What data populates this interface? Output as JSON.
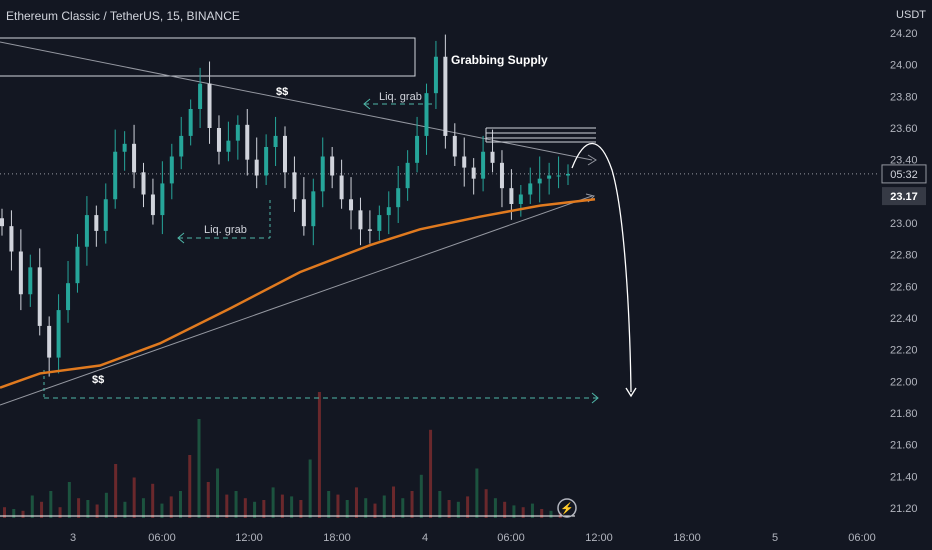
{
  "header": {
    "title": "Ethereum Classic / TetherUS, 15, BINANCE",
    "currency": "USDT"
  },
  "chart_data": {
    "type": "candlestick",
    "symbol": "ETCUSDT",
    "interval": "15",
    "exchange": "BINANCE",
    "y_ticks": [
      "24.20",
      "24.00",
      "23.80",
      "23.60",
      "23.40",
      "23.20",
      "23.00",
      "22.80",
      "22.60",
      "22.40",
      "22.20",
      "22.00",
      "21.80",
      "21.60",
      "21.40",
      "21.20"
    ],
    "x_ticks": [
      "3",
      "06:00",
      "12:00",
      "18:00",
      "4",
      "06:00",
      "12:00",
      "18:00",
      "5",
      "06:00"
    ],
    "ylim": [
      21.13,
      24.25
    ],
    "current_price": "23.17",
    "countdown": "05:32",
    "countdown_price": 23.31,
    "price_series": [
      22.98,
      22.82,
      22.55,
      22.72,
      22.35,
      22.15,
      22.45,
      22.62,
      22.85,
      23.05,
      22.95,
      23.15,
      23.45,
      23.5,
      23.32,
      23.18,
      23.05,
      23.25,
      23.42,
      23.55,
      23.72,
      23.88,
      23.6,
      23.45,
      23.52,
      23.62,
      23.4,
      23.3,
      23.48,
      23.55,
      23.32,
      23.15,
      22.98,
      23.2,
      23.42,
      23.3,
      23.15,
      23.08,
      22.96,
      22.95,
      23.05,
      23.1,
      23.22,
      23.38,
      23.55,
      23.82,
      24.05,
      23.55,
      23.42,
      23.35,
      23.28,
      23.45,
      23.38,
      23.22,
      23.12,
      23.18,
      23.25,
      23.28,
      23.3,
      23.3,
      23.31
    ],
    "ema_line": [
      [
        0,
        21.96
      ],
      [
        40,
        22.05
      ],
      [
        100,
        22.1
      ],
      [
        160,
        22.24
      ],
      [
        230,
        22.46
      ],
      [
        300,
        22.69
      ],
      [
        370,
        22.86
      ],
      [
        420,
        22.96
      ],
      [
        480,
        23.04
      ],
      [
        540,
        23.11
      ],
      [
        595,
        23.15
      ]
    ],
    "volume": [
      12,
      10,
      8,
      25,
      18,
      30,
      12,
      40,
      22,
      20,
      15,
      28,
      60,
      18,
      45,
      22,
      38,
      16,
      24,
      30,
      70,
      110,
      40,
      55,
      26,
      30,
      22,
      18,
      20,
      34,
      26,
      24,
      20,
      65,
      140,
      30,
      26,
      20,
      34,
      22,
      16,
      25,
      35,
      22,
      30,
      48,
      98,
      30,
      20,
      18,
      24,
      55,
      32,
      22,
      18,
      14,
      12,
      16,
      10,
      8,
      6
    ],
    "volume_colors": [
      "#7a2c2e",
      "#1f5e44",
      "#7a2c2e",
      "#1f5e44",
      "#7a2c2e",
      "#1f5e44"
    ],
    "annotations": {
      "grabbing_supply": "Grabbing Supply",
      "liq_grab_upper": "Liq. grab",
      "liq_grab_lower": "Liq. grab",
      "dollars_upper": "$$",
      "dollars_lower": "$$"
    },
    "colors": {
      "bg": "#131722",
      "up": "#26a69a",
      "down": "#ef5350",
      "ema": "#e07a1f",
      "grid": "#1e222d",
      "text": "#b2b5be",
      "annotation": "#ffffff",
      "dashed": "#4fb7a8"
    }
  }
}
